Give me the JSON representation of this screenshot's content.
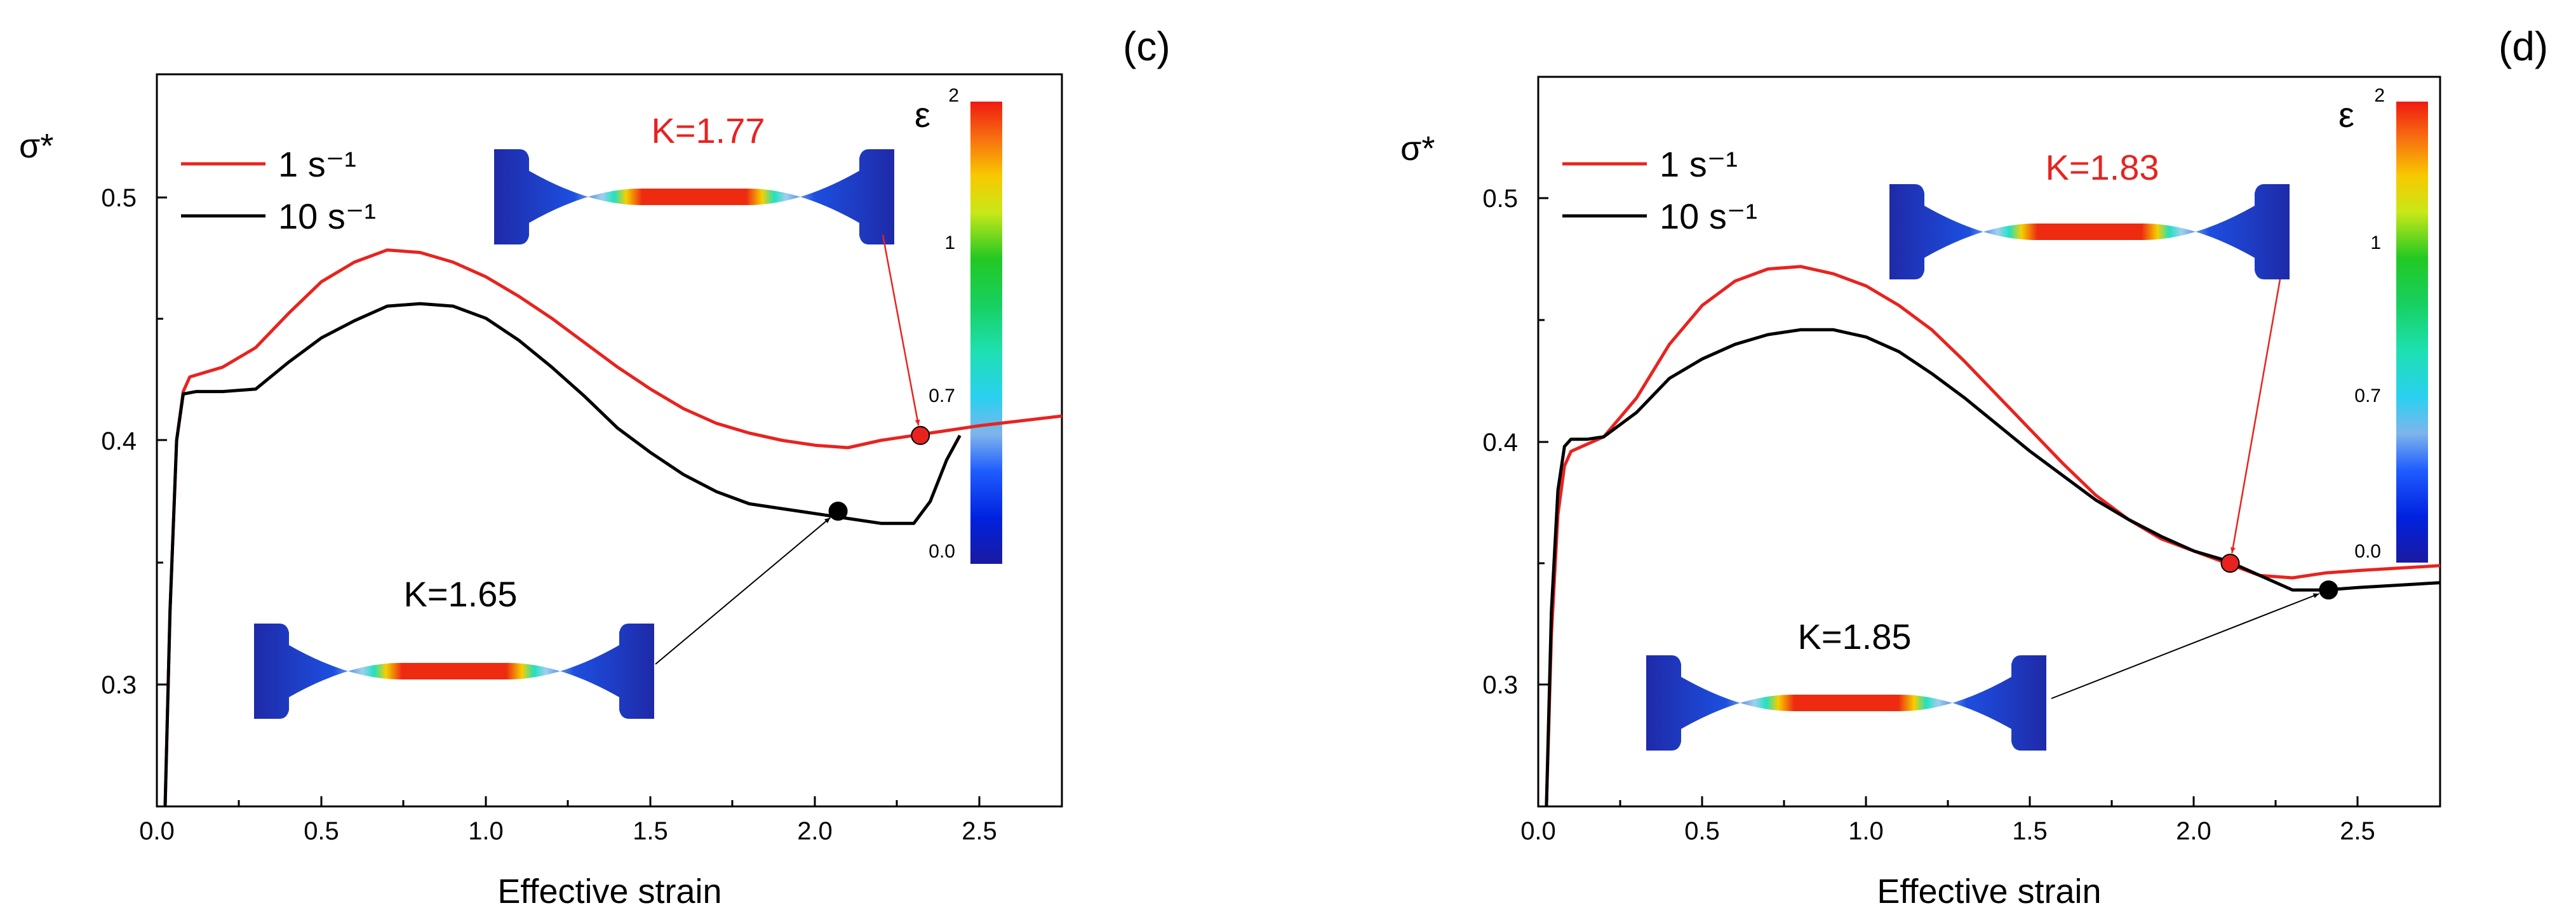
{
  "chart_data": [
    {
      "type": "line",
      "panel_label": "(c)",
      "xlabel": "Effective strain",
      "ylabel": "σ*",
      "xlim": [
        0.0,
        2.75
      ],
      "ylim": [
        0.25,
        0.55
      ],
      "x_ticks": [
        "0.0",
        "0.5",
        "1.0",
        "1.5",
        "2.0",
        "2.5"
      ],
      "y_ticks": [
        "0.3",
        "0.4",
        "0.5"
      ],
      "legend": {
        "placement": "top-left",
        "entries": [
          "1 s⁻¹",
          "10 s⁻¹"
        ]
      },
      "series": [
        {
          "name": "1 s⁻¹",
          "color": "#e8231f",
          "points": [
            [
              0.025,
              0.25
            ],
            [
              0.04,
              0.33
            ],
            [
              0.06,
              0.4
            ],
            [
              0.08,
              0.42
            ],
            [
              0.1,
              0.426
            ],
            [
              0.2,
              0.43
            ],
            [
              0.3,
              0.438
            ],
            [
              0.4,
              0.452
            ],
            [
              0.5,
              0.465
            ],
            [
              0.6,
              0.473
            ],
            [
              0.7,
              0.478
            ],
            [
              0.8,
              0.477
            ],
            [
              0.9,
              0.473
            ],
            [
              1.0,
              0.467
            ],
            [
              1.1,
              0.459
            ],
            [
              1.2,
              0.45
            ],
            [
              1.3,
              0.44
            ],
            [
              1.4,
              0.43
            ],
            [
              1.5,
              0.421
            ],
            [
              1.6,
              0.413
            ],
            [
              1.7,
              0.407
            ],
            [
              1.8,
              0.403
            ],
            [
              1.9,
              0.4
            ],
            [
              2.0,
              0.398
            ],
            [
              2.1,
              0.397
            ],
            [
              2.2,
              0.4
            ],
            [
              2.3,
              0.402
            ],
            [
              2.4,
              0.404
            ],
            [
              2.5,
              0.406
            ],
            [
              2.76,
              0.41
            ]
          ]
        },
        {
          "name": "10 s⁻¹",
          "color": "#000000",
          "points": [
            [
              0.025,
              0.25
            ],
            [
              0.04,
              0.33
            ],
            [
              0.06,
              0.4
            ],
            [
              0.08,
              0.419
            ],
            [
              0.12,
              0.42
            ],
            [
              0.2,
              0.42
            ],
            [
              0.3,
              0.421
            ],
            [
              0.4,
              0.432
            ],
            [
              0.5,
              0.442
            ],
            [
              0.6,
              0.449
            ],
            [
              0.7,
              0.455
            ],
            [
              0.8,
              0.456
            ],
            [
              0.9,
              0.455
            ],
            [
              1.0,
              0.45
            ],
            [
              1.1,
              0.441
            ],
            [
              1.2,
              0.43
            ],
            [
              1.3,
              0.418
            ],
            [
              1.4,
              0.405
            ],
            [
              1.5,
              0.395
            ],
            [
              1.6,
              0.386
            ],
            [
              1.7,
              0.379
            ],
            [
              1.8,
              0.374
            ],
            [
              1.9,
              0.372
            ],
            [
              2.0,
              0.37
            ],
            [
              2.1,
              0.368
            ],
            [
              2.2,
              0.366
            ],
            [
              2.3,
              0.366
            ],
            [
              2.35,
              0.375
            ],
            [
              2.4,
              0.392
            ],
            [
              2.44,
              0.402
            ]
          ]
        }
      ],
      "markers": [
        {
          "series": "1 s⁻¹",
          "x": 2.32,
          "y": 0.402,
          "color": "#e8231f"
        },
        {
          "series": "10 s⁻¹",
          "x": 2.07,
          "y": 0.371,
          "color": "#000000"
        }
      ],
      "annotations": [
        {
          "text": "K=1.77",
          "color": "#e8231f",
          "points_to_marker": 0
        },
        {
          "text": "K=1.65",
          "color": "#000000",
          "points_to_marker": 1
        }
      ],
      "colorbar": {
        "symbol": "ε",
        "labels": [
          "2",
          "1",
          "0.7",
          "0.0"
        ]
      }
    },
    {
      "type": "line",
      "panel_label": "(d)",
      "xlabel": "Effective strain",
      "ylabel": "σ*",
      "xlim": [
        0.0,
        2.75
      ],
      "ylim": [
        0.25,
        0.55
      ],
      "x_ticks": [
        "0.0",
        "0.5",
        "1.0",
        "1.5",
        "2.0",
        "2.5"
      ],
      "y_ticks": [
        "0.3",
        "0.4",
        "0.5"
      ],
      "legend": {
        "placement": "top-left",
        "entries": [
          "1 s⁻¹",
          "10 s⁻¹"
        ]
      },
      "series": [
        {
          "name": "1 s⁻¹",
          "color": "#e8231f",
          "points": [
            [
              0.025,
              0.25
            ],
            [
              0.04,
              0.32
            ],
            [
              0.06,
              0.37
            ],
            [
              0.08,
              0.39
            ],
            [
              0.1,
              0.396
            ],
            [
              0.2,
              0.402
            ],
            [
              0.3,
              0.418
            ],
            [
              0.4,
              0.44
            ],
            [
              0.5,
              0.456
            ],
            [
              0.6,
              0.466
            ],
            [
              0.7,
              0.471
            ],
            [
              0.8,
              0.472
            ],
            [
              0.9,
              0.469
            ],
            [
              1.0,
              0.464
            ],
            [
              1.1,
              0.456
            ],
            [
              1.2,
              0.446
            ],
            [
              1.3,
              0.433
            ],
            [
              1.4,
              0.419
            ],
            [
              1.5,
              0.405
            ],
            [
              1.6,
              0.391
            ],
            [
              1.7,
              0.378
            ],
            [
              1.8,
              0.368
            ],
            [
              1.9,
              0.36
            ],
            [
              2.0,
              0.355
            ],
            [
              2.1,
              0.35
            ],
            [
              2.2,
              0.345
            ],
            [
              2.3,
              0.344
            ],
            [
              2.4,
              0.346
            ],
            [
              2.5,
              0.347
            ],
            [
              2.75,
              0.349
            ]
          ]
        },
        {
          "name": "10 s⁻¹",
          "color": "#000000",
          "points": [
            [
              0.025,
              0.25
            ],
            [
              0.04,
              0.33
            ],
            [
              0.06,
              0.38
            ],
            [
              0.08,
              0.398
            ],
            [
              0.1,
              0.401
            ],
            [
              0.15,
              0.401
            ],
            [
              0.2,
              0.402
            ],
            [
              0.3,
              0.412
            ],
            [
              0.4,
              0.426
            ],
            [
              0.5,
              0.434
            ],
            [
              0.6,
              0.44
            ],
            [
              0.7,
              0.444
            ],
            [
              0.8,
              0.446
            ],
            [
              0.9,
              0.446
            ],
            [
              1.0,
              0.443
            ],
            [
              1.1,
              0.437
            ],
            [
              1.2,
              0.428
            ],
            [
              1.3,
              0.418
            ],
            [
              1.4,
              0.407
            ],
            [
              1.5,
              0.396
            ],
            [
              1.6,
              0.386
            ],
            [
              1.7,
              0.376
            ],
            [
              1.8,
              0.368
            ],
            [
              1.9,
              0.361
            ],
            [
              2.0,
              0.355
            ],
            [
              2.1,
              0.351
            ],
            [
              2.2,
              0.345
            ],
            [
              2.3,
              0.339
            ],
            [
              2.4,
              0.339
            ],
            [
              2.5,
              0.34
            ],
            [
              2.75,
              0.342
            ]
          ]
        }
      ],
      "markers": [
        {
          "series": "1 s⁻¹",
          "x": 2.11,
          "y": 0.35,
          "color": "#e8231f"
        },
        {
          "series": "10 s⁻¹",
          "x": 2.41,
          "y": 0.339,
          "color": "#000000"
        }
      ],
      "annotations": [
        {
          "text": "K=1.83",
          "color": "#e8231f",
          "points_to_marker": 0
        },
        {
          "text": "K=1.85",
          "color": "#000000",
          "points_to_marker": 1
        }
      ],
      "colorbar": {
        "symbol": "ε",
        "labels": [
          "2",
          "1",
          "0.7",
          "0.0"
        ]
      }
    }
  ]
}
